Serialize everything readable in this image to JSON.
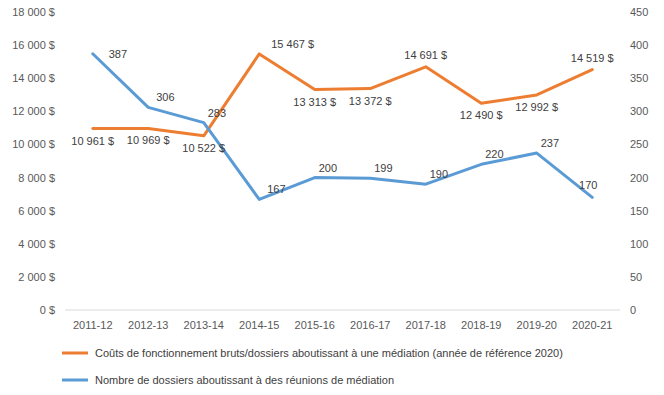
{
  "chart_data": {
    "type": "line",
    "categories": [
      "2011-12",
      "2012-13",
      "2013-14",
      "2014-15",
      "2015-16",
      "2016-17",
      "2017-18",
      "2018-19",
      "2019-20",
      "2020-21"
    ],
    "series": [
      {
        "name": "Coûts de fonctionnement bruts/dossiers aboutissant à une médiation (année de référence 2020)",
        "color": "#ed7d31",
        "values": [
          10961,
          10969,
          10522,
          15467,
          13313,
          13372,
          14691,
          12490,
          12992,
          14519
        ],
        "value_labels": [
          "10 961 $",
          "10 969 $",
          "10 522 $",
          "15 467 $",
          "13 313 $",
          "13 372 $",
          "14 691 $",
          "12 490 $",
          "12 992 $",
          "14 519 $"
        ]
      },
      {
        "name": "Nombre de dossiers aboutissant à des réunions de médiation",
        "color": "#5b9bd5",
        "axis": "y2",
        "values": [
          387,
          306,
          283,
          167,
          200,
          199,
          190,
          220,
          237,
          170
        ]
      }
    ],
    "ylim": [
      0,
      18000
    ],
    "yticks": [
      {
        "value": 0,
        "label": "0 $"
      },
      {
        "value": 2000,
        "label": "2 000 $"
      },
      {
        "value": 4000,
        "label": "4 000 $"
      },
      {
        "value": 6000,
        "label": "6 000 $"
      },
      {
        "value": 8000,
        "label": "8 000 $"
      },
      {
        "value": 10000,
        "label": "10 000 $"
      },
      {
        "value": 12000,
        "label": "12 000 $"
      },
      {
        "value": 14000,
        "label": "14 000 $"
      },
      {
        "value": 16000,
        "label": "16 000 $"
      },
      {
        "value": 18000,
        "label": "18 000 $"
      }
    ],
    "y2lim": [
      0,
      450
    ],
    "y2ticks": [
      0,
      50,
      100,
      150,
      200,
      250,
      300,
      350,
      400,
      450
    ],
    "grid": false,
    "legend": "bottom",
    "data_labels": true
  }
}
